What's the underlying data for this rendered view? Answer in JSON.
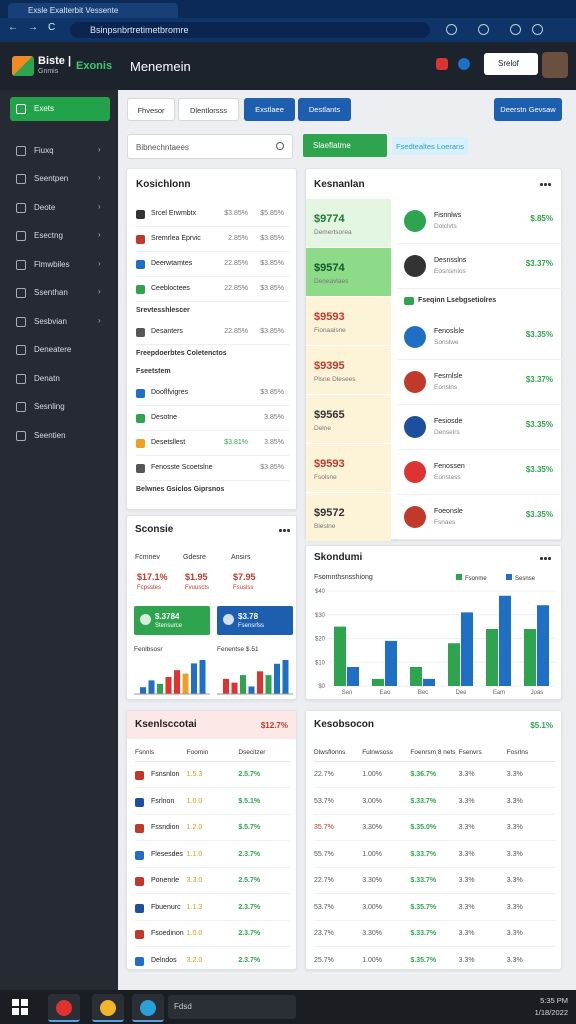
{
  "browser": {
    "tab": "Exsle Exalterbit Vessente",
    "url": "Bsinpsnbrtretimetbromre"
  },
  "header": {
    "brand": "Biste |",
    "brand_sub": "Gnmis",
    "app": "Exonis",
    "title": "Menemein",
    "button": "Srelof"
  },
  "sidebar": [
    "Exets",
    "Fiuxq",
    "Seentpen",
    "Deote",
    "Esectng",
    "Flmwbiles",
    "Ssenthan",
    "Sesbvian",
    "Deneatere",
    "Denatn",
    "Sesnling",
    "Seentien"
  ],
  "tabs": [
    "Fhvesor",
    "Dlentlorsss",
    "Exstlaee",
    "Destlants"
  ],
  "action": "Deerstn Gevsaw",
  "search": "Bibnechntaees",
  "filter_green": "Slaeflatme",
  "filter_link": "Fsedtealtes Loerans",
  "list_panel": {
    "title": "Kosichlonn",
    "rows": [
      {
        "name": "Srcel Erwmbtx",
        "a": "$3.85%",
        "b": "$5.85%"
      },
      {
        "name": "Sremrlea Eprvic",
        "a": "2.85%",
        "b": "$3.85%"
      },
      {
        "name": "Deerwtamtes",
        "a": "22.85%",
        "b": "$3.85%"
      },
      {
        "name": "Ceebloctees",
        "a": "22.85%",
        "b": "$3.85%"
      },
      {
        "heading": "Srevtesshlescer"
      },
      {
        "name": "Desanters",
        "a": "22.85%",
        "b": "$3.85%"
      },
      {
        "heading": "Freepdoerbtes Coletenctos"
      },
      {
        "heading": "Fseetstem"
      },
      {
        "name": "Dooflfvigres",
        "b": "$3.85%"
      },
      {
        "name": "Desotne",
        "b": "3.85%"
      },
      {
        "name": "Desetsllest",
        "a": "$3.81%",
        "b": "3.85%"
      },
      {
        "name": "Fenosste Scoetslne",
        "b": "$3.85%"
      },
      {
        "heading": "Belwnes Gsiclos Giprsnos"
      }
    ]
  },
  "market_panel": {
    "title": "Kesnanlan",
    "prices": [
      "$9774",
      "$9574",
      "$9593",
      "$9395",
      "$9565",
      "$9593",
      "$9572"
    ],
    "price_subs": [
      "Demertsorea",
      "Deneavlaes",
      "Fionaalsne",
      "Plsne Dlesees",
      "Delne",
      "Fsolsne",
      "Bleslne"
    ],
    "items": [
      {
        "name": "Fisnnlws",
        "sub": "Dolclvts",
        "value": "$.85%"
      },
      {
        "name": "Desnsslns",
        "sub": "Eosnsmlos",
        "value": "$3.37%"
      },
      {
        "heading": "Fseqinn Lsebgsetiolres"
      },
      {
        "name": "Fenoslsle",
        "sub": "Sonslwe",
        "value": "$3.35%"
      },
      {
        "name": "Fesrnlsle",
        "sub": "Eonslns",
        "value": "$3.37%"
      },
      {
        "name": "Fesiosde",
        "sub": "Denselrs",
        "value": "$3.35%"
      },
      {
        "name": "Fenossen",
        "sub": "Eonstess",
        "value": "$3.35%"
      },
      {
        "name": "Foeonsle",
        "sub": "Fsnaes",
        "value": "$3.35%"
      }
    ]
  },
  "stats_panel": {
    "title": "Sconsie",
    "stats": [
      {
        "label": "Fcmnev",
        "value": "$17.1%",
        "sub": "Fcpsstes"
      },
      {
        "label": "Gdesre",
        "value": "$1.95",
        "sub": "Fvuuscts"
      },
      {
        "label": "Ansirs",
        "value": "$7.95",
        "sub": "Fsuslss"
      }
    ],
    "buttons": [
      {
        "title": "$.3784",
        "sub": "Stensurce"
      },
      {
        "title": "$3.78",
        "sub": "Fsensrfss"
      }
    ],
    "mini": [
      {
        "title": "Fenlbsosr",
        "values": [
          2,
          4,
          3,
          5,
          7,
          6,
          9,
          10
        ],
        "colors": [
          "#1f6fc4",
          "#1f6fc4",
          "#2ea44f",
          "#e0322f",
          "#e0322f",
          "#f0a020",
          "#1f6fc4",
          "#1f6fc4"
        ]
      },
      {
        "title": "Fenentse $.51",
        "values": [
          4,
          3,
          5,
          2,
          6,
          5,
          8,
          9
        ],
        "colors": [
          "#e0322f",
          "#e0322f",
          "#2ea44f",
          "#1f6fc4",
          "#e0322f",
          "#2ea44f",
          "#1f6fc4",
          "#1f6fc4"
        ]
      }
    ]
  },
  "chart_data": {
    "type": "bar",
    "title": "Skondumi",
    "subtitle": "Fsomnthsnsshiong",
    "categories": [
      "Sen",
      "Eao",
      "Bec",
      "Dee",
      "Eam",
      "Joas"
    ],
    "series": [
      {
        "name": "Fsonme",
        "color": "#2ea44f",
        "values": [
          25,
          3,
          8,
          18,
          24,
          24
        ]
      },
      {
        "name": "Sesnse",
        "color": "#1f6fc4",
        "values": [
          8,
          19,
          3,
          31,
          38,
          34
        ]
      }
    ],
    "ylim": [
      0,
      40
    ],
    "yticks": [
      {
        "value": 0,
        "label": "$0"
      },
      {
        "value": 10,
        "label": "$10"
      },
      {
        "value": 20,
        "label": "$20"
      },
      {
        "value": 30,
        "label": "$30"
      },
      {
        "value": 40,
        "label": "$40"
      }
    ]
  },
  "table_left": {
    "title": "Ksenlsccotai",
    "badge": "$12.7%",
    "columns": [
      "Fsnnls",
      "Foomin",
      "Dsecitzer"
    ],
    "rows": [
      [
        "Fsnsnlon",
        "1.5.3",
        "2.5.7%"
      ],
      [
        "Fsrlnon",
        "1.0.0",
        "$.5.1%"
      ],
      [
        "Fssndion",
        "1.2.0",
        "$.5.7%"
      ],
      [
        "Flesesdes",
        "1.1.0",
        "2.3.7%"
      ],
      [
        "Ponenrle",
        "3.3.0",
        "2.5.7%"
      ],
      [
        "Fbuenurc",
        "1.1.3",
        "2.3.7%"
      ],
      [
        "Fsoedinon",
        "1.0.0",
        "2.3.7%"
      ],
      [
        "Delndos",
        "3.2.0",
        "2.3.7%"
      ]
    ]
  },
  "table_right": {
    "title": "Kesobsocon",
    "badge": "$5.1%",
    "columns": [
      "Dlwsflonns",
      "Fulnwsoss",
      "Foenrsm 8 nets",
      "Fsenvrs",
      "Fosrlns"
    ],
    "rows": [
      [
        "22.7%",
        "1.00%",
        "$.36.7%",
        "3.3%",
        "3.3%"
      ],
      [
        "53.7%",
        "3.00%",
        "$.33.7%",
        "3.3%",
        "3.3%"
      ],
      [
        "35.7%",
        "3.30%",
        "$.35.0%",
        "3.3%",
        "3.3%"
      ],
      [
        "55.7%",
        "1.00%",
        "$.33.7%",
        "3.3%",
        "3.3%"
      ],
      [
        "22.7%",
        "3.30%",
        "$.33.7%",
        "3.3%",
        "3.3%"
      ],
      [
        "53.7%",
        "3.00%",
        "$.35.7%",
        "3.3%",
        "3.3%"
      ],
      [
        "23.7%",
        "3.30%",
        "$.33.7%",
        "3.3%",
        "3.3%"
      ],
      [
        "25.7%",
        "1.00%",
        "$.35.7%",
        "3.3%",
        "3.3%"
      ]
    ]
  },
  "taskbar": {
    "search": "Fdsd",
    "time": "5:35 PM",
    "date": "1/18/2022"
  }
}
